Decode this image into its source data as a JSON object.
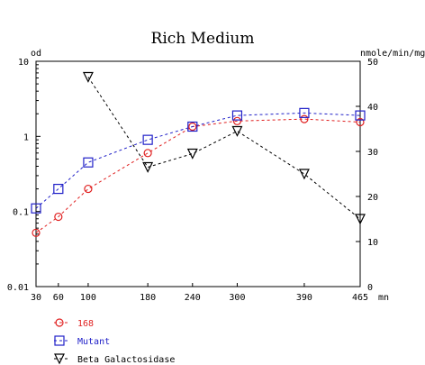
{
  "chart_data": {
    "type": "line",
    "title": "Rich Medium",
    "x_unit_label": "mn",
    "x_ticks": [
      30,
      60,
      100,
      180,
      240,
      300,
      390,
      465
    ],
    "x_range": [
      30,
      465
    ],
    "y_left": {
      "unit_label": "od",
      "scale": "log",
      "range": [
        0.01,
        10
      ],
      "ticks": [
        0.01,
        0.1,
        1,
        10
      ],
      "tick_labels": [
        "0.01",
        "0.1",
        "1",
        "10"
      ]
    },
    "y_right": {
      "unit_label": "nmole/min/mg",
      "scale": "linear",
      "range": [
        0,
        50
      ],
      "ticks": [
        0,
        10,
        20,
        30,
        40,
        50
      ],
      "tick_labels": [
        "0",
        "10",
        "20",
        "30",
        "40",
        "50"
      ]
    },
    "grid": false,
    "legend_placement": "bottom-left",
    "series": [
      {
        "name": "168",
        "axis": "left",
        "color": "#e02020",
        "marker": "circle",
        "points": [
          [
            30,
            0.052
          ],
          [
            60,
            0.085
          ],
          [
            100,
            0.2
          ],
          [
            180,
            0.6
          ],
          [
            240,
            1.35
          ],
          [
            300,
            1.6
          ],
          [
            390,
            1.7
          ],
          [
            465,
            1.55
          ]
        ]
      },
      {
        "name": "Mutant",
        "axis": "left",
        "color": "#2020c8",
        "marker": "square",
        "points": [
          [
            30,
            0.11
          ],
          [
            60,
            0.2
          ],
          [
            100,
            0.45
          ],
          [
            180,
            0.9
          ],
          [
            240,
            1.35
          ],
          [
            300,
            1.9
          ],
          [
            390,
            2.05
          ],
          [
            465,
            1.9
          ]
        ]
      },
      {
        "name": "Beta Galactosidase",
        "axis": "right",
        "color": "#000000",
        "marker": "triangle-down",
        "points": [
          [
            100,
            46.5
          ],
          [
            180,
            26.5
          ],
          [
            240,
            29.5
          ],
          [
            300,
            34.5
          ],
          [
            390,
            25.0
          ],
          [
            465,
            15.0
          ]
        ]
      }
    ]
  }
}
